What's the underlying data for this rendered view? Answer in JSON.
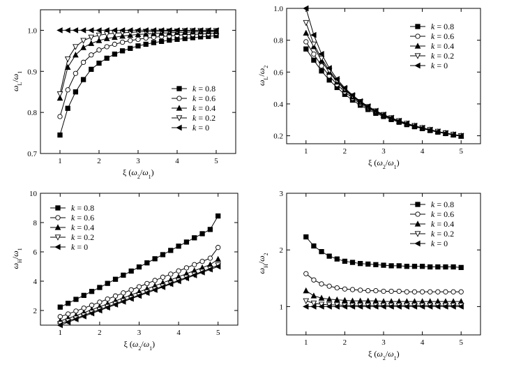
{
  "chart_data": [
    {
      "type": "line",
      "xlabel": "ξ (ω2/ω1)",
      "ylabel": "ωL/ω1",
      "xlim": [
        0.5,
        5.5
      ],
      "ylim": [
        0.7,
        1.05
      ],
      "xticks": [
        "1",
        "2",
        "3",
        "4",
        "5"
      ],
      "yticks": [
        "0.7",
        "0.8",
        "0.9",
        "1.0"
      ],
      "legend_position": "right",
      "x": [
        1.0,
        1.2,
        1.4,
        1.6,
        1.8,
        2.0,
        2.2,
        2.4,
        2.6,
        2.8,
        3.0,
        3.2,
        3.4,
        3.6,
        3.8,
        4.0,
        4.2,
        4.4,
        4.6,
        4.8,
        5.0
      ],
      "series": [
        {
          "name": "k = 0.8",
          "marker": "square",
          "values": [
            0.745,
            0.81,
            0.85,
            0.88,
            0.905,
            0.92,
            0.932,
            0.942,
            0.95,
            0.956,
            0.962,
            0.966,
            0.97,
            0.973,
            0.976,
            0.978,
            0.98,
            0.982,
            0.984,
            0.985,
            0.987
          ]
        },
        {
          "name": "k = 0.6",
          "marker": "circle-open",
          "values": [
            0.79,
            0.855,
            0.895,
            0.922,
            0.94,
            0.952,
            0.96,
            0.966,
            0.971,
            0.975,
            0.978,
            0.981,
            0.983,
            0.985,
            0.986,
            0.988,
            0.989,
            0.99,
            0.991,
            0.992,
            0.993
          ]
        },
        {
          "name": "k = 0.4",
          "marker": "triangle-up",
          "values": [
            0.835,
            0.91,
            0.94,
            0.958,
            0.968,
            0.975,
            0.98,
            0.983,
            0.986,
            0.988,
            0.99,
            0.991,
            0.992,
            0.993,
            0.994,
            0.995,
            0.995,
            0.996,
            0.996,
            0.997,
            0.997
          ]
        },
        {
          "name": "k = 0.2",
          "marker": "triangle-down-open",
          "values": [
            0.845,
            0.93,
            0.96,
            0.975,
            0.983,
            0.988,
            0.991,
            0.993,
            0.994,
            0.995,
            0.996,
            0.997,
            0.997,
            0.998,
            0.998,
            0.998,
            0.999,
            0.999,
            0.999,
            0.999,
            0.999
          ]
        },
        {
          "name": "k = 0",
          "marker": "triangle-left",
          "values": [
            1.0,
            1.0,
            1.0,
            1.0,
            1.0,
            1.0,
            1.0,
            1.0,
            1.0,
            1.0,
            1.0,
            1.0,
            1.0,
            1.0,
            1.0,
            1.0,
            1.0,
            1.0,
            1.0,
            1.0,
            1.0
          ]
        }
      ]
    },
    {
      "type": "line",
      "xlabel": "ξ (ω2/ω1)",
      "ylabel": "ωL/ω2",
      "xlim": [
        0.5,
        5.5
      ],
      "ylim": [
        0.15,
        1.0
      ],
      "xticks": [
        "1",
        "2",
        "3",
        "4",
        "5"
      ],
      "yticks": [
        "0.2",
        "0.4",
        "0.6",
        "0.8",
        "1.0"
      ],
      "legend_position": "top-right",
      "x": [
        1.0,
        1.2,
        1.4,
        1.6,
        1.8,
        2.0,
        2.2,
        2.4,
        2.6,
        2.8,
        3.0,
        3.2,
        3.4,
        3.6,
        3.8,
        4.0,
        4.2,
        4.4,
        4.6,
        4.8,
        5.0
      ],
      "series": [
        {
          "name": "k = 0.8",
          "marker": "square",
          "values": [
            0.745,
            0.675,
            0.607,
            0.55,
            0.503,
            0.46,
            0.424,
            0.392,
            0.365,
            0.341,
            0.321,
            0.302,
            0.285,
            0.27,
            0.257,
            0.245,
            0.233,
            0.223,
            0.214,
            0.205,
            0.197
          ]
        },
        {
          "name": "k = 0.6",
          "marker": "circle-open",
          "values": [
            0.79,
            0.713,
            0.639,
            0.576,
            0.522,
            0.476,
            0.436,
            0.402,
            0.373,
            0.348,
            0.326,
            0.307,
            0.289,
            0.273,
            0.259,
            0.247,
            0.235,
            0.225,
            0.215,
            0.207,
            0.199
          ]
        },
        {
          "name": "k = 0.4",
          "marker": "triangle-up",
          "values": [
            0.845,
            0.76,
            0.671,
            0.599,
            0.538,
            0.488,
            0.445,
            0.41,
            0.379,
            0.353,
            0.33,
            0.31,
            0.292,
            0.276,
            0.262,
            0.249,
            0.237,
            0.226,
            0.217,
            0.208,
            0.2
          ]
        },
        {
          "name": "k = 0.2",
          "marker": "triangle-down-open",
          "values": [
            0.91,
            0.775,
            0.686,
            0.609,
            0.546,
            0.494,
            0.45,
            0.414,
            0.382,
            0.355,
            0.332,
            0.312,
            0.294,
            0.277,
            0.263,
            0.25,
            0.238,
            0.227,
            0.217,
            0.208,
            0.2
          ]
        },
        {
          "name": "k = 0",
          "marker": "triangle-left",
          "values": [
            1.0,
            0.833,
            0.714,
            0.625,
            0.556,
            0.5,
            0.455,
            0.417,
            0.385,
            0.357,
            0.333,
            0.313,
            0.294,
            0.278,
            0.263,
            0.25,
            0.238,
            0.227,
            0.217,
            0.208,
            0.2
          ]
        }
      ]
    },
    {
      "type": "line",
      "xlabel": "ξ (ω2/ω1)",
      "ylabel": "ωH/ω1",
      "xlim": [
        0.5,
        5.5
      ],
      "ylim": [
        1.0,
        10.0
      ],
      "xticks": [
        "1",
        "2",
        "3",
        "4",
        "5"
      ],
      "yticks": [
        "2",
        "4",
        "6",
        "8",
        "10"
      ],
      "legend_position": "top-left",
      "x": [
        1.0,
        1.2,
        1.4,
        1.6,
        1.8,
        2.0,
        2.2,
        2.4,
        2.6,
        2.8,
        3.0,
        3.2,
        3.4,
        3.6,
        3.8,
        4.0,
        4.2,
        4.4,
        4.6,
        4.8,
        5.0
      ],
      "series": [
        {
          "name": "k = 0.8",
          "marker": "square",
          "values": [
            2.23,
            2.49,
            2.76,
            3.03,
            3.3,
            3.57,
            3.85,
            4.13,
            4.41,
            4.69,
            4.97,
            5.25,
            5.53,
            5.81,
            6.1,
            6.39,
            6.67,
            6.96,
            7.24,
            7.53,
            8.45
          ]
        },
        {
          "name": "k = 0.6",
          "marker": "circle-open",
          "values": [
            1.58,
            1.76,
            1.96,
            2.16,
            2.36,
            2.57,
            2.78,
            2.99,
            3.2,
            3.41,
            3.62,
            3.84,
            4.05,
            4.27,
            4.48,
            4.7,
            4.91,
            5.13,
            5.35,
            5.57,
            6.3
          ]
        },
        {
          "name": "k = 0.4",
          "marker": "triangle-up",
          "values": [
            1.28,
            1.46,
            1.65,
            1.85,
            2.05,
            2.25,
            2.45,
            2.65,
            2.86,
            3.06,
            3.27,
            3.47,
            3.68,
            3.89,
            4.09,
            4.3,
            4.51,
            4.72,
            4.92,
            5.13,
            5.5
          ]
        },
        {
          "name": "k = 0.2",
          "marker": "triangle-down-open",
          "values": [
            1.1,
            1.28,
            1.47,
            1.67,
            1.87,
            2.06,
            2.26,
            2.46,
            2.66,
            2.86,
            3.06,
            3.26,
            3.46,
            3.66,
            3.86,
            4.06,
            4.26,
            4.46,
            4.66,
            4.86,
            5.1
          ]
        },
        {
          "name": "k = 0",
          "marker": "triangle-left",
          "values": [
            1.0,
            1.2,
            1.4,
            1.6,
            1.8,
            2.0,
            2.2,
            2.4,
            2.6,
            2.8,
            3.0,
            3.2,
            3.4,
            3.6,
            3.8,
            4.0,
            4.2,
            4.4,
            4.6,
            4.8,
            5.0
          ]
        }
      ]
    },
    {
      "type": "line",
      "xlabel": "ξ (ω2/ω1)",
      "ylabel": "ωH/ω2",
      "xlim": [
        0.5,
        5.5
      ],
      "ylim": [
        0.5,
        3.0
      ],
      "xticks": [
        "1",
        "2",
        "3",
        "4",
        "5"
      ],
      "yticks": [
        "1",
        "2",
        "3"
      ],
      "legend_position": "top-right",
      "x": [
        1.0,
        1.2,
        1.4,
        1.6,
        1.8,
        2.0,
        2.2,
        2.4,
        2.6,
        2.8,
        3.0,
        3.2,
        3.4,
        3.6,
        3.8,
        4.0,
        4.2,
        4.4,
        4.6,
        4.8,
        5.0
      ],
      "series": [
        {
          "name": "k = 0.8",
          "marker": "square",
          "values": [
            2.23,
            2.07,
            1.97,
            1.89,
            1.84,
            1.8,
            1.78,
            1.76,
            1.75,
            1.74,
            1.73,
            1.72,
            1.72,
            1.71,
            1.71,
            1.71,
            1.7,
            1.7,
            1.7,
            1.7,
            1.69
          ]
        },
        {
          "name": "k = 0.6",
          "marker": "circle-open",
          "values": [
            1.58,
            1.47,
            1.4,
            1.36,
            1.33,
            1.31,
            1.3,
            1.29,
            1.28,
            1.28,
            1.27,
            1.27,
            1.27,
            1.26,
            1.26,
            1.26,
            1.26,
            1.26,
            1.26,
            1.26,
            1.26
          ]
        },
        {
          "name": "k = 0.4",
          "marker": "triangle-up",
          "values": [
            1.28,
            1.19,
            1.15,
            1.13,
            1.12,
            1.11,
            1.1,
            1.1,
            1.1,
            1.1,
            1.09,
            1.09,
            1.09,
            1.09,
            1.09,
            1.09,
            1.09,
            1.09,
            1.09,
            1.09,
            1.09
          ]
        },
        {
          "name": "k = 0.2",
          "marker": "triangle-down-open",
          "values": [
            1.1,
            1.06,
            1.04,
            1.03,
            1.03,
            1.02,
            1.02,
            1.02,
            1.02,
            1.02,
            1.02,
            1.02,
            1.02,
            1.02,
            1.02,
            1.02,
            1.02,
            1.02,
            1.02,
            1.02,
            1.02
          ]
        },
        {
          "name": "k = 0",
          "marker": "triangle-left",
          "values": [
            1.0,
            1.0,
            1.0,
            1.0,
            1.0,
            1.0,
            1.0,
            1.0,
            1.0,
            1.0,
            1.0,
            1.0,
            1.0,
            1.0,
            1.0,
            1.0,
            1.0,
            1.0,
            1.0,
            1.0,
            1.0
          ]
        }
      ]
    }
  ]
}
